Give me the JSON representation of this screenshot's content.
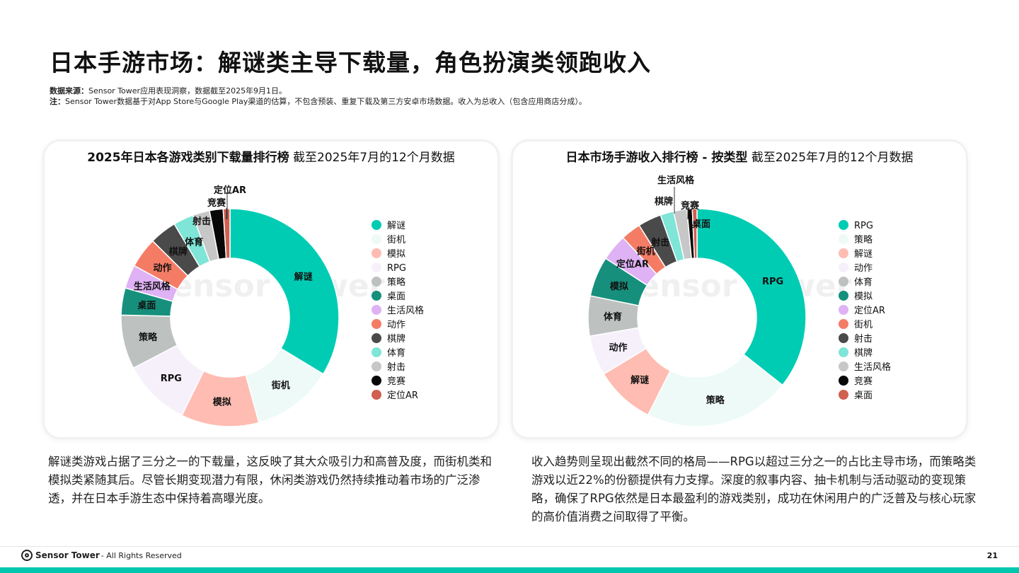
{
  "page_title": "日本手游市场：解谜类主导下载量，角色扮演类领跑收入",
  "notes": {
    "source_label": "数据来源：",
    "source_text": "Sensor Tower应用表现洞察，数据截至2025年9月1日。",
    "note_label": "注：",
    "note_text": "Sensor Tower数据基于对App Store与Google Play渠道的估算，不包含预装、重复下载及第三方安卓市场数据。收入为总收入（包含应用商店分成）。"
  },
  "watermark": "Sensor Tower",
  "colors": {
    "accent": "#00c6ae"
  },
  "chart_data": [
    {
      "type": "pie",
      "variant": "donut",
      "title": "2025年日本各游戏类别下载量排行榜",
      "subtitle": "截至2025年7月的12个月数据",
      "legend_position": "right",
      "categories": [
        "解谜",
        "街机",
        "模拟",
        "RPG",
        "策略",
        "桌面",
        "生活风格",
        "动作",
        "棋牌",
        "体育",
        "射击",
        "竞赛",
        "定位AR"
      ],
      "values": [
        33.5,
        12,
        11.5,
        10,
        8,
        4,
        3.5,
        4.5,
        4,
        3,
        2.5,
        2,
        1
      ],
      "colors": [
        "#00ccb4",
        "#eefaf7",
        "#ffbcb2",
        "#f6f0fb",
        "#bdc2c0",
        "#16907c",
        "#dfb1f5",
        "#f47c65",
        "#4a4a4a",
        "#7ee5d7",
        "#c7c7c7",
        "#080808",
        "#d0604f"
      ]
    },
    {
      "type": "pie",
      "variant": "donut",
      "title": "日本市场手游收入排行榜 - 按类型",
      "subtitle": "截至2025年7月的12个月数据",
      "legend_position": "right",
      "categories": [
        "RPG",
        "策略",
        "解谜",
        "动作",
        "体育",
        "模拟",
        "定位AR",
        "街机",
        "射击",
        "棋牌",
        "生活风格",
        "竞赛",
        "桌面"
      ],
      "values": [
        36,
        22,
        9,
        6,
        6,
        6,
        4,
        3,
        3.5,
        2,
        2,
        0.8,
        0.7
      ],
      "colors": [
        "#00ccb4",
        "#eefaf7",
        "#ffbcb2",
        "#f6f0fb",
        "#bdc2c0",
        "#16907c",
        "#dfb1f5",
        "#f47c65",
        "#4a4a4a",
        "#7ee5d7",
        "#c7c7c7",
        "#080808",
        "#d0604f"
      ]
    }
  ],
  "paragraphs": {
    "left": "解谜类游戏占据了三分之一的下载量，这反映了其大众吸引力和高普及度，而街机类和模拟类紧随其后。尽管长期变现潜力有限，休闲类游戏仍然持续推动着市场的广泛渗透，并在日本手游生态中保持着高曝光度。",
    "right": "收入趋势则呈现出截然不同的格局——RPG以超过三分之一的占比主导市场，而策略类游戏以近22%的份额提供有力支撑。深度的叙事内容、抽卡机制与活动驱动的变现策略，确保了RPG依然是日本最盈利的游戏类别，成功在休闲用户的广泛普及与核心玩家的高价值消费之间取得了平衡。"
  },
  "footer": {
    "brand": "Sensor Tower",
    "rights": "- All Rights Reserved",
    "page_number": "21"
  }
}
